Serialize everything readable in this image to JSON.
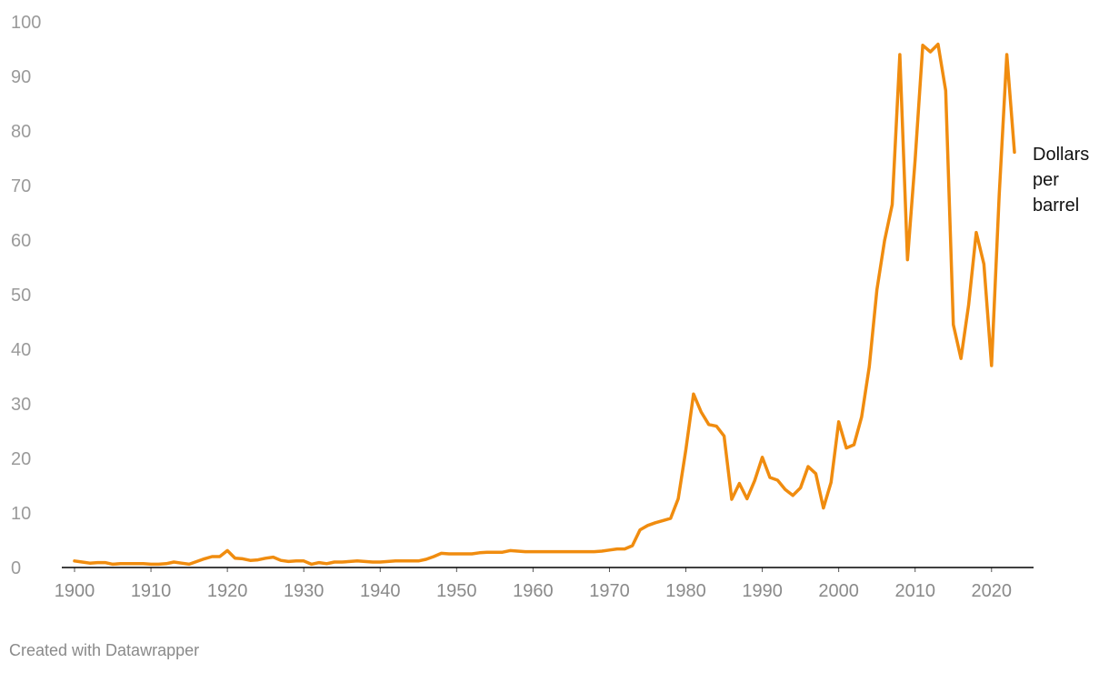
{
  "chart_data": {
    "type": "line",
    "title": "",
    "xlabel": "",
    "ylabel": "",
    "xlim": [
      1900,
      2023
    ],
    "ylim": [
      0,
      100
    ],
    "x_ticks": [
      1900,
      1910,
      1920,
      1930,
      1940,
      1950,
      1960,
      1970,
      1980,
      1990,
      2000,
      2010,
      2020
    ],
    "y_ticks": [
      0,
      10,
      20,
      30,
      40,
      50,
      60,
      70,
      80,
      90,
      100
    ],
    "grid": false,
    "colors": {
      "line": "#F08C0F",
      "baseline": "#000000"
    },
    "series_label": [
      "Dollars",
      "per",
      "barrel"
    ],
    "x": [
      1900,
      1901,
      1902,
      1903,
      1904,
      1905,
      1906,
      1907,
      1908,
      1909,
      1910,
      1911,
      1912,
      1913,
      1914,
      1915,
      1916,
      1917,
      1918,
      1919,
      1920,
      1921,
      1922,
      1923,
      1924,
      1925,
      1926,
      1927,
      1928,
      1929,
      1930,
      1931,
      1932,
      1933,
      1934,
      1935,
      1936,
      1937,
      1938,
      1939,
      1940,
      1941,
      1942,
      1943,
      1944,
      1945,
      1946,
      1947,
      1948,
      1949,
      1950,
      1951,
      1952,
      1953,
      1954,
      1955,
      1956,
      1957,
      1958,
      1959,
      1960,
      1961,
      1962,
      1963,
      1964,
      1965,
      1966,
      1967,
      1968,
      1969,
      1970,
      1971,
      1972,
      1973,
      1974,
      1975,
      1976,
      1977,
      1978,
      1979,
      1980,
      1981,
      1982,
      1983,
      1984,
      1985,
      1986,
      1987,
      1988,
      1989,
      1990,
      1991,
      1992,
      1993,
      1994,
      1995,
      1996,
      1997,
      1998,
      1999,
      2000,
      2001,
      2002,
      2003,
      2004,
      2005,
      2006,
      2007,
      2008,
      2009,
      2010,
      2011,
      2012,
      2013,
      2014,
      2015,
      2016,
      2017,
      2018,
      2019,
      2020,
      2021,
      2022,
      2023
    ],
    "series": [
      {
        "values": [
          1.2,
          1.0,
          0.8,
          0.9,
          0.9,
          0.6,
          0.7,
          0.7,
          0.7,
          0.7,
          0.6,
          0.6,
          0.7,
          1.0,
          0.8,
          0.6,
          1.1,
          1.6,
          2.0,
          2.0,
          3.1,
          1.7,
          1.6,
          1.3,
          1.4,
          1.7,
          1.9,
          1.3,
          1.1,
          1.2,
          1.2,
          0.6,
          0.9,
          0.7,
          1.0,
          1.0,
          1.1,
          1.2,
          1.1,
          1.0,
          1.0,
          1.1,
          1.2,
          1.2,
          1.2,
          1.2,
          1.5,
          2.0,
          2.6,
          2.5,
          2.5,
          2.5,
          2.5,
          2.7,
          2.8,
          2.8,
          2.8,
          3.1,
          3.0,
          2.9,
          2.9,
          2.9,
          2.9,
          2.9,
          2.9,
          2.9,
          2.9,
          2.9,
          2.9,
          3.0,
          3.2,
          3.4,
          3.4,
          4.0,
          6.9,
          7.7,
          8.2,
          8.6,
          9.0,
          12.6,
          21.6,
          31.8,
          28.5,
          26.2,
          25.9,
          24.1,
          12.5,
          15.4,
          12.6,
          15.9,
          20.2,
          16.5,
          16.0,
          14.3,
          13.2,
          14.6,
          18.5,
          17.2,
          10.9,
          15.6,
          26.7,
          21.9,
          22.5,
          27.6,
          36.8,
          50.9,
          59.9,
          66.5,
          94.0,
          56.4,
          74.7,
          95.7,
          94.5,
          95.9,
          87.4,
          44.5,
          38.3,
          48.1,
          61.4,
          55.6,
          37.0,
          68.2,
          94.0,
          76.1
        ]
      }
    ]
  },
  "footer": {
    "credit": "Created with Datawrapper"
  }
}
